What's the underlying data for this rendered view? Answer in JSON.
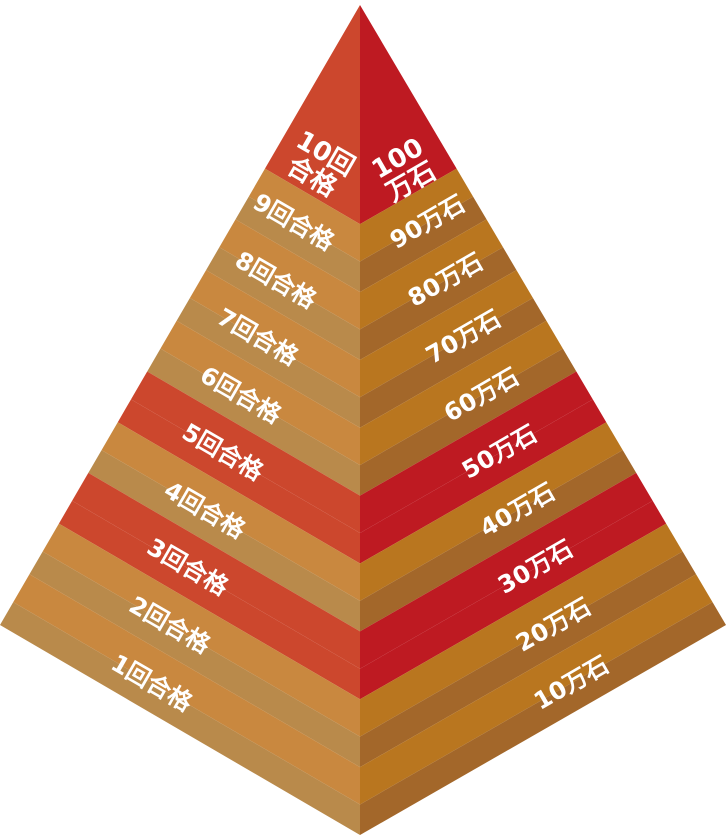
{
  "tiers": [
    {
      "left": "10回合格",
      "right": "100万石"
    },
    {
      "left": "9回合格",
      "right": "90万石"
    },
    {
      "left": "8回合格",
      "right": "80万石"
    },
    {
      "left": "7回合格",
      "right": "70万石"
    },
    {
      "left": "6回合格",
      "right": "60万石"
    },
    {
      "left": "5回合格",
      "right": "50万石"
    },
    {
      "left": "4回合格",
      "right": "40万石"
    },
    {
      "left": "3回合格",
      "right": "30万石"
    },
    {
      "left": "2回合格",
      "right": "20万石"
    },
    {
      "left": "1回合格",
      "right": "10万石"
    }
  ]
}
